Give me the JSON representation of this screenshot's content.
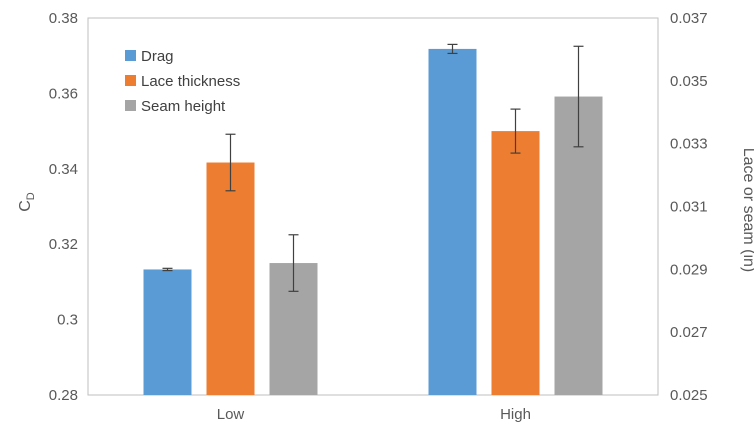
{
  "chart_data": {
    "type": "bar",
    "categories": [
      "Low",
      "High"
    ],
    "y_axis_left": {
      "label": "C",
      "label_subscript": "D",
      "ylim": [
        0.28,
        0.38
      ],
      "ticks": [
        "0.28",
        "0.3",
        "0.32",
        "0.34",
        "0.36",
        "0.38"
      ]
    },
    "y_axis_right": {
      "label": "Lace or seam (in)",
      "ylim": [
        0.025,
        0.037
      ],
      "ticks": [
        "0.025",
        "0.027",
        "0.029",
        "0.031",
        "0.033",
        "0.035",
        "0.037"
      ]
    },
    "series": [
      {
        "name": "Drag",
        "axis": "left",
        "color": "#5b9bd5",
        "values": [
          0.3133,
          0.3718
        ],
        "errors": [
          0.0003,
          0.0012
        ]
      },
      {
        "name": "Lace thickness",
        "axis": "right",
        "color": "#ed7d31",
        "values": [
          0.0324,
          0.0334
        ],
        "errors": [
          0.0009,
          0.0007
        ]
      },
      {
        "name": "Seam height",
        "axis": "right",
        "color": "#a5a5a5",
        "values": [
          0.0292,
          0.0345
        ],
        "errors": [
          0.0009,
          0.0016
        ]
      }
    ],
    "legend_position": "top-left",
    "grid": false
  }
}
